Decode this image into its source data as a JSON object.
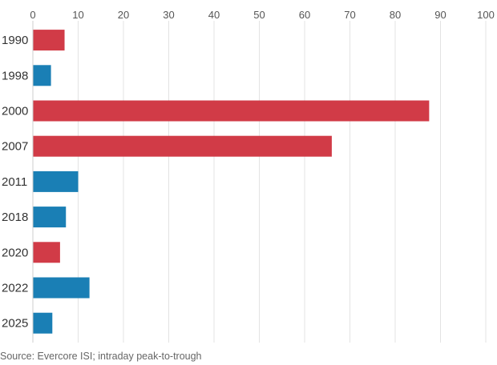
{
  "chart_data": {
    "type": "bar",
    "orientation": "horizontal",
    "categories": [
      "1990",
      "1998",
      "2000",
      "2007",
      "2011",
      "2018",
      "2020",
      "2022",
      "2025"
    ],
    "values": [
      7,
      4,
      87.5,
      66,
      10,
      7.3,
      6,
      12.5,
      4.3
    ],
    "bar_colors": [
      "#d13b47",
      "#1a7fb5",
      "#d13b47",
      "#d13b47",
      "#1a7fb5",
      "#1a7fb5",
      "#d13b47",
      "#1a7fb5",
      "#1a7fb5"
    ],
    "xlim": [
      0,
      100
    ],
    "xticks": [
      0,
      10,
      20,
      30,
      40,
      50,
      60,
      70,
      80,
      90,
      100
    ],
    "grid": true,
    "source": "Source: Evercore ISI; intraday peak-to-trough"
  }
}
